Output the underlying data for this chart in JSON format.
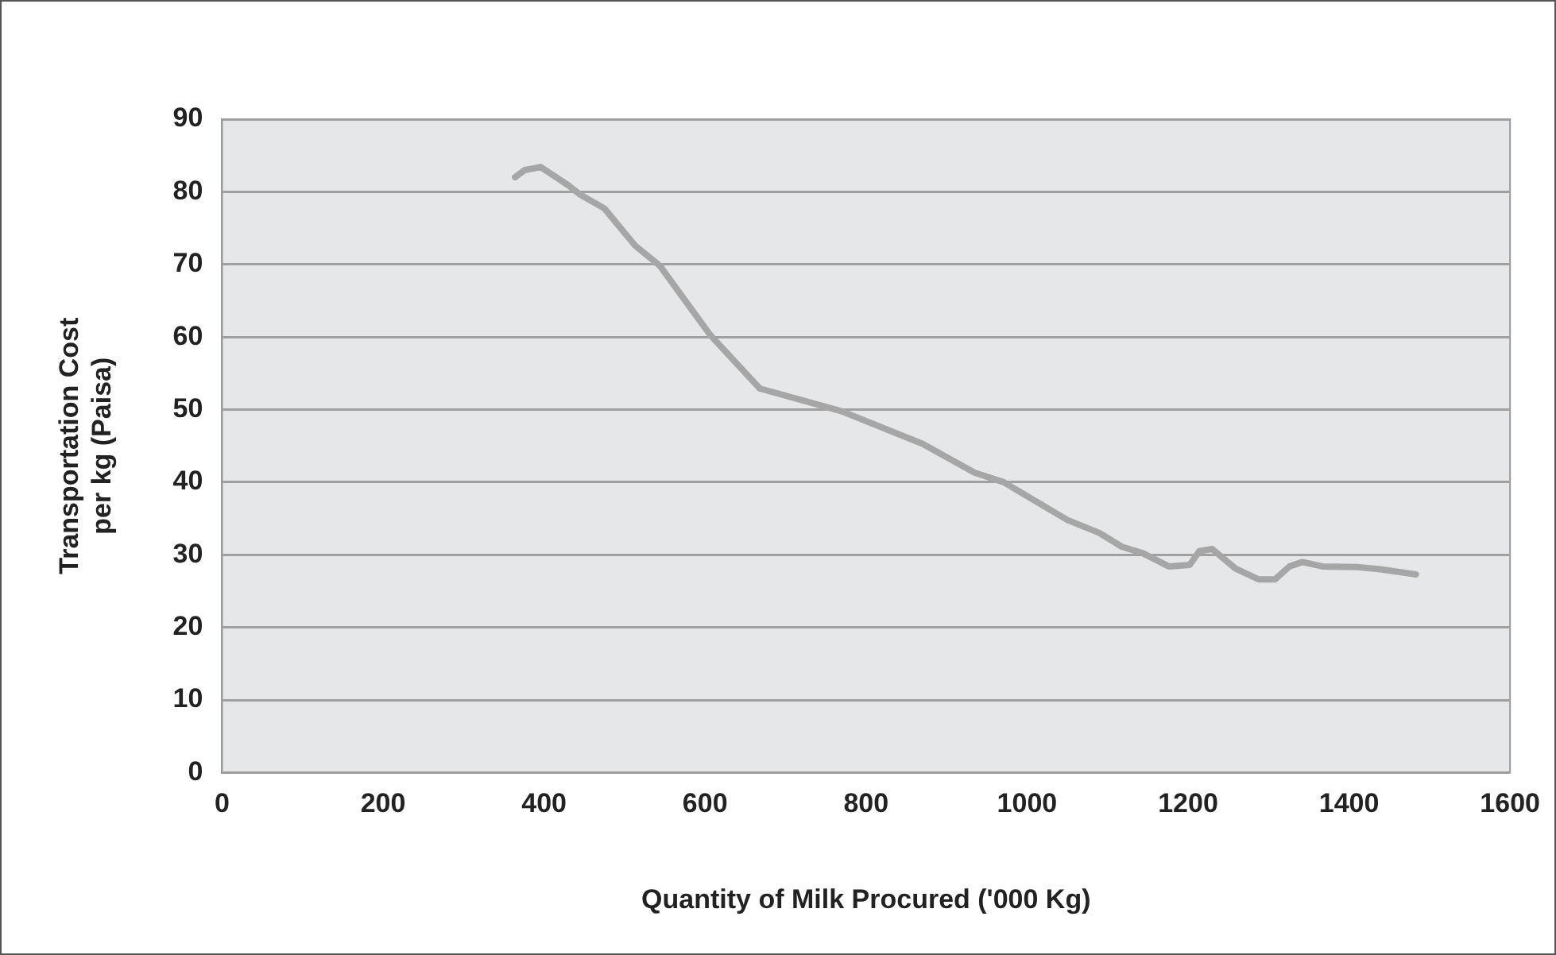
{
  "chart_data": {
    "type": "line",
    "xlabel": "Quantity of Milk Procured ('000 Kg)",
    "ylabel": "Transportation Cost\nper kg (Paisa)",
    "x": [
      364,
      376,
      396,
      430,
      445,
      475,
      513,
      544,
      578,
      607,
      668,
      769,
      870,
      935,
      971,
      1050,
      1090,
      1118,
      1144,
      1176,
      1202,
      1214,
      1230,
      1259,
      1288,
      1308,
      1326,
      1342,
      1367,
      1410,
      1439,
      1483
    ],
    "series": [
      {
        "color": "#a6a6a6",
        "values": [
          82.0,
          83.0,
          83.4,
          80.9,
          79.6,
          77.7,
          72.6,
          69.8,
          64.6,
          60.2,
          52.9,
          49.8,
          45.3,
          41.3,
          40.0,
          34.8,
          33.0,
          31.1,
          30.2,
          28.4,
          28.6,
          30.5,
          30.8,
          28.1,
          26.6,
          26.6,
          28.4,
          29.0,
          28.4,
          28.3,
          28.0,
          27.3
        ]
      }
    ],
    "xlim": [
      0,
      1600
    ],
    "xticks": [
      0,
      200,
      400,
      600,
      800,
      1000,
      1200,
      1400,
      1600
    ],
    "ylim": [
      0,
      90
    ],
    "yticks": [
      0,
      10,
      20,
      30,
      40,
      50,
      60,
      70,
      80,
      90
    ],
    "grid": "y",
    "legend": false,
    "marker": "none",
    "line_style": "solid"
  }
}
